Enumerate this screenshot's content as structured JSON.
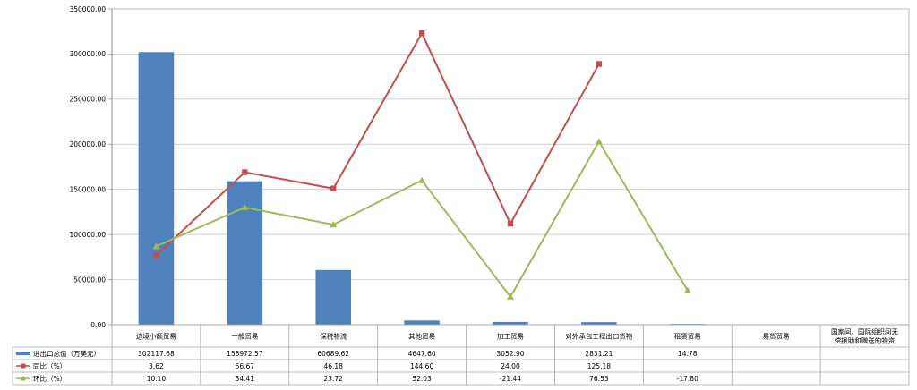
{
  "colors": {
    "bar": "#4F81BD",
    "yoy": "#C0504D",
    "mom": "#9BBB59",
    "grid": "#BFBFBF",
    "border": "#A6A6A6",
    "axis": "#868686"
  },
  "chart_data": {
    "type": "bar",
    "title": "",
    "xlabel": "",
    "ylabel": "",
    "ylim": [
      0,
      350000
    ],
    "ytick_step": 50000,
    "ytick_labels": [
      "0.00",
      "50000.00",
      "100000.00",
      "150000.00",
      "200000.00",
      "250000.00",
      "300000.00",
      "350000.00"
    ],
    "grid": true,
    "legend_placement": "data-table-left",
    "categories": [
      {
        "lines": [
          "边境小额贸易"
        ]
      },
      {
        "lines": [
          "一般贸易"
        ]
      },
      {
        "lines": [
          "保税物流"
        ]
      },
      {
        "lines": [
          "其他贸易"
        ]
      },
      {
        "lines": [
          "加工贸易"
        ]
      },
      {
        "lines": [
          "对外承包工程出口货物"
        ]
      },
      {
        "lines": [
          "租赁贸易"
        ]
      },
      {
        "lines": [
          "易货贸易"
        ]
      },
      {
        "lines": [
          "国家间、国际组织间无",
          "偿援助和赠送的物资"
        ]
      }
    ],
    "series": [
      {
        "name": "进出口总值（万美元）",
        "kind": "bar",
        "values": [
          302117.68,
          158972.57,
          60689.62,
          4647.6,
          3052.9,
          2831.21,
          14.78,
          null,
          null
        ],
        "labels": [
          "302117.68",
          "158972.57",
          "60689.62",
          "4647.60",
          "3052.90",
          "2831.21",
          "14.78",
          "",
          ""
        ]
      },
      {
        "name": "同比（%）",
        "kind": "line",
        "marker": "square",
        "values": [
          3.62,
          56.67,
          46.18,
          144.6,
          24.0,
          125.18,
          null,
          null,
          null
        ],
        "plot_values": [
          77000,
          169000,
          151000,
          323000,
          112000,
          289000,
          null,
          null,
          null
        ],
        "labels": [
          "3.62",
          "56.67",
          "46.18",
          "144.60",
          "24.00",
          "125.18",
          "",
          "",
          ""
        ]
      },
      {
        "name": "环比（%）",
        "kind": "line",
        "marker": "triangle",
        "values": [
          10.1,
          34.41,
          23.72,
          52.03,
          -21.44,
          76.53,
          -17.8,
          null,
          null
        ],
        "plot_values": [
          87000,
          130000,
          111000,
          160000,
          31000,
          203000,
          38000,
          null,
          null
        ],
        "labels": [
          "10.10",
          "34.41",
          "23.72",
          "52.03",
          "-21.44",
          "76.53",
          "-17.80",
          "",
          ""
        ]
      }
    ]
  }
}
